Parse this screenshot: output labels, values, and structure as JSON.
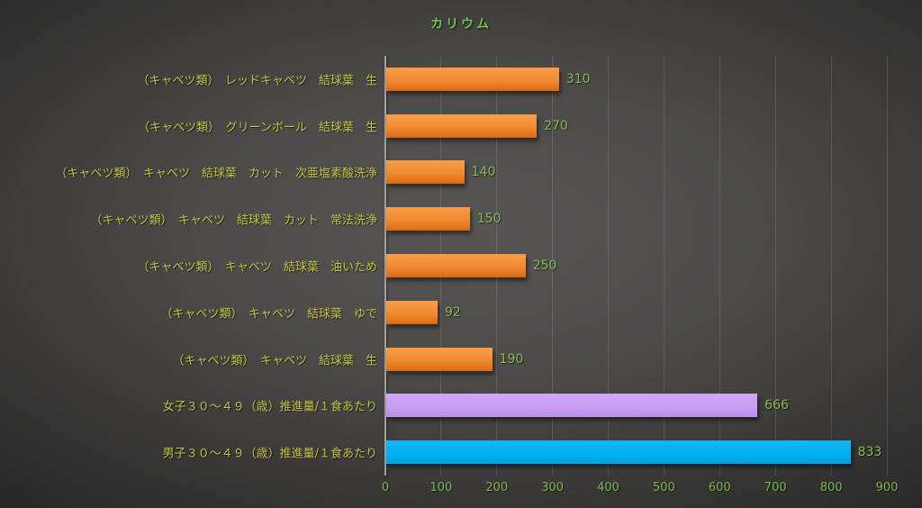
{
  "chart_data": {
    "type": "bar",
    "orientation": "horizontal",
    "title": "カリウム",
    "categories": [
      "（キャベツ類）　レッドキャベツ　結球葉　生",
      "（キャベツ類）　グリーンボール　結球葉　生",
      "（キャベツ類）　キャベツ　結球葉　カット　次亜塩素酸洗浄",
      "（キャベツ類）　キャベツ　結球葉　カット　常法洗浄",
      "（キャベツ類）　キャベツ　結球葉　油いため",
      "（キャベツ類）　キャベツ　結球葉　ゆで",
      "（キャベツ類）　キャベツ　結球葉　生",
      "女子３０～４９（歳）推進量/１食あたり",
      "男子３０～４９（歳）推進量/１食あたり"
    ],
    "values": [
      310,
      270,
      140,
      150,
      250,
      92,
      190,
      666,
      833
    ],
    "bar_colors": [
      "orange",
      "orange",
      "orange",
      "orange",
      "orange",
      "orange",
      "orange",
      "purple",
      "blue"
    ],
    "xlim": [
      0,
      900
    ],
    "ticks": [
      0,
      100,
      200,
      300,
      400,
      500,
      600,
      700,
      800,
      900
    ],
    "xlabel": "",
    "ylabel": "",
    "legend": "none",
    "grid": "vertical-only",
    "colors": {
      "orange_bar": "#ed8128",
      "purple_bar": "#c79cf2",
      "blue_bar": "#00b0f0",
      "title_text": "#77c145",
      "value_text": "#85bb50",
      "tick_text": "#7fb84e",
      "category_text": "#c5c240",
      "background_center": "#585655",
      "background_edge": "#262626"
    }
  }
}
